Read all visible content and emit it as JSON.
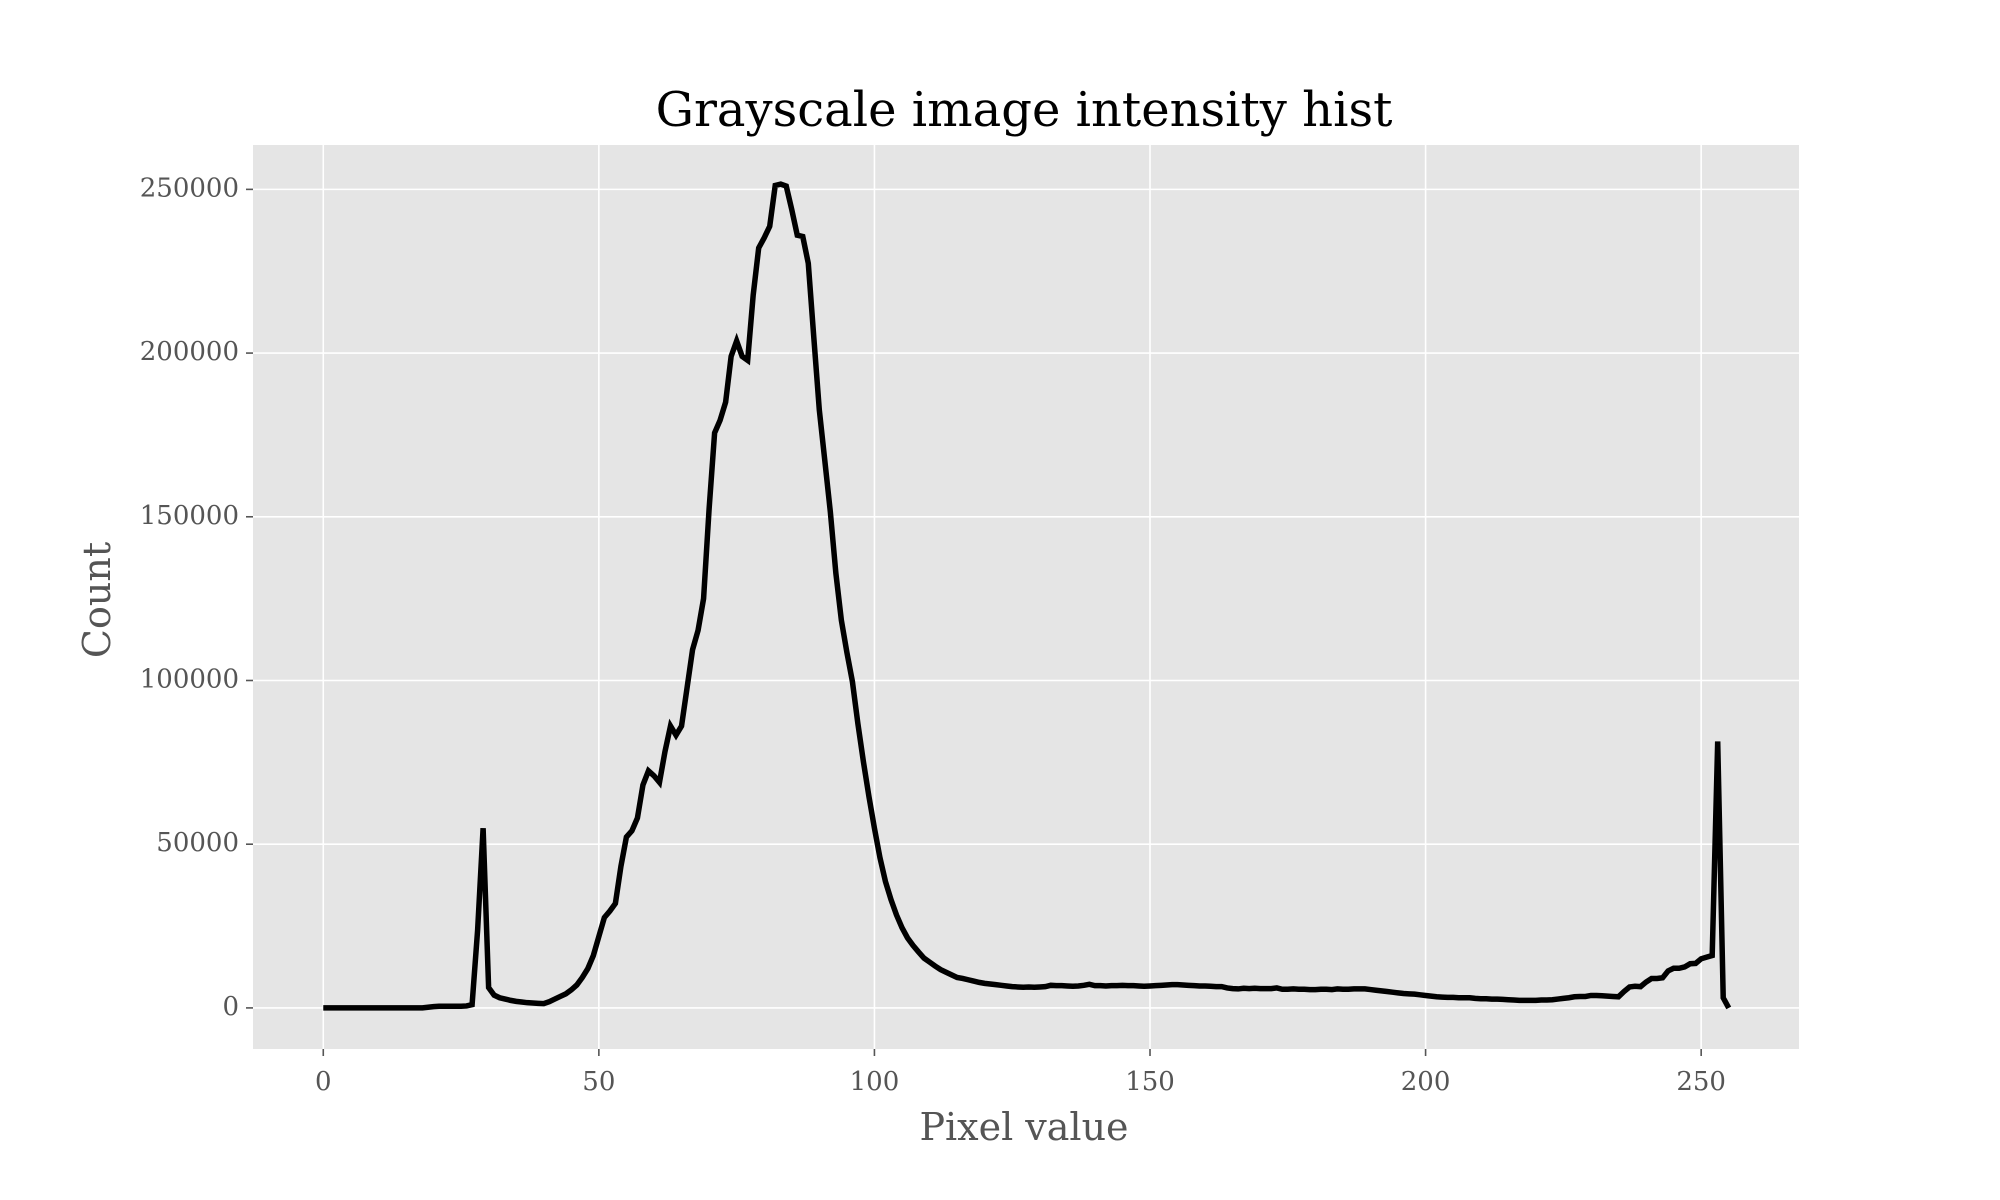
{
  "chart_data": {
    "type": "line",
    "title": "Grayscale image intensity hist",
    "x_label": "Pixel value",
    "y_label": "Count",
    "color": "#000000",
    "grid": true,
    "xlim": [
      -12.75,
      267.75
    ],
    "xticks": [
      0,
      50,
      100,
      150,
      200,
      250
    ],
    "ylim": [
      -12550,
      263550
    ],
    "yticks": [
      0,
      50000,
      100000,
      150000,
      200000,
      250000
    ],
    "x": [
      0,
      1,
      2,
      3,
      4,
      5,
      6,
      7,
      8,
      9,
      10,
      11,
      12,
      13,
      14,
      15,
      16,
      17,
      18,
      19,
      20,
      21,
      22,
      23,
      24,
      25,
      26,
      27,
      28,
      29,
      30,
      31,
      32,
      33,
      34,
      35,
      36,
      37,
      38,
      39,
      40,
      41,
      42,
      43,
      44,
      45,
      46,
      47,
      48,
      49,
      50,
      51,
      52,
      53,
      54,
      55,
      56,
      57,
      58,
      59,
      60,
      61,
      62,
      63,
      64,
      65,
      66,
      67,
      68,
      69,
      70,
      71,
      72,
      73,
      74,
      75,
      76,
      77,
      78,
      79,
      80,
      81,
      82,
      83,
      84,
      85,
      86,
      87,
      88,
      89,
      90,
      91,
      92,
      93,
      94,
      95,
      96,
      97,
      98,
      99,
      100,
      101,
      102,
      103,
      104,
      105,
      106,
      107,
      108,
      109,
      110,
      111,
      112,
      113,
      114,
      115,
      116,
      117,
      118,
      119,
      120,
      121,
      122,
      123,
      124,
      125,
      126,
      127,
      128,
      129,
      130,
      131,
      132,
      133,
      134,
      135,
      136,
      137,
      138,
      139,
      140,
      141,
      142,
      143,
      144,
      145,
      146,
      147,
      148,
      149,
      150,
      151,
      152,
      153,
      154,
      155,
      156,
      157,
      158,
      159,
      160,
      161,
      162,
      163,
      164,
      165,
      166,
      167,
      168,
      169,
      170,
      171,
      172,
      173,
      174,
      175,
      176,
      177,
      178,
      179,
      180,
      181,
      182,
      183,
      184,
      185,
      186,
      187,
      188,
      189,
      190,
      191,
      192,
      193,
      194,
      195,
      196,
      197,
      198,
      199,
      200,
      201,
      202,
      203,
      204,
      205,
      206,
      207,
      208,
      209,
      210,
      211,
      212,
      213,
      214,
      215,
      216,
      217,
      218,
      219,
      220,
      221,
      222,
      223,
      224,
      225,
      226,
      227,
      228,
      229,
      230,
      231,
      232,
      233,
      234,
      235,
      236,
      237,
      238,
      239,
      240,
      241,
      242,
      243,
      244,
      245,
      246,
      247,
      248,
      249,
      250,
      251,
      252,
      253,
      254,
      255
    ],
    "values": [
      0,
      0,
      0,
      0,
      0,
      0,
      0,
      0,
      0,
      0,
      0,
      0,
      0,
      0,
      0,
      0,
      0,
      0,
      0,
      200,
      400,
      500,
      500,
      500,
      500,
      500,
      600,
      1000,
      23700,
      54900,
      6200,
      3900,
      3100,
      2700,
      2300,
      2000,
      1800,
      1600,
      1500,
      1400,
      1300,
      1900,
      2700,
      3500,
      4300,
      5500,
      7000,
      9300,
      12000,
      16000,
      21800,
      27600,
      29600,
      31900,
      43200,
      52200,
      54100,
      58000,
      68100,
      72400,
      70900,
      68900,
      78300,
      86100,
      83300,
      86100,
      97700,
      109400,
      115300,
      125000,
      152300,
      175600,
      179500,
      185000,
      199000,
      203700,
      199000,
      197800,
      217700,
      232100,
      235200,
      238700,
      251200,
      251600,
      251000,
      243800,
      236000,
      235600,
      227400,
      204800,
      182600,
      167100,
      151500,
      132800,
      118400,
      108600,
      99700,
      86800,
      75200,
      64600,
      54900,
      45900,
      38600,
      33100,
      28400,
      24500,
      21400,
      19100,
      17100,
      15200,
      14000,
      12800,
      11700,
      10900,
      10100,
      9300,
      9000,
      8600,
      8200,
      7800,
      7500,
      7300,
      7100,
      6900,
      6700,
      6500,
      6400,
      6300,
      6400,
      6300,
      6400,
      6500,
      6900,
      6800,
      6800,
      6700,
      6600,
      6700,
      6900,
      7200,
      6800,
      6800,
      6700,
      6800,
      6800,
      6900,
      6800,
      6800,
      6700,
      6600,
      6700,
      6800,
      6900,
      7000,
      7100,
      7100,
      7000,
      6900,
      6800,
      6700,
      6700,
      6600,
      6500,
      6500,
      6100,
      5900,
      5800,
      6000,
      5900,
      6000,
      5900,
      5900,
      5900,
      6100,
      5700,
      5700,
      5800,
      5700,
      5700,
      5600,
      5600,
      5700,
      5700,
      5600,
      5800,
      5700,
      5700,
      5800,
      5800,
      5800,
      5600,
      5400,
      5200,
      5000,
      4800,
      4600,
      4400,
      4300,
      4200,
      4000,
      3800,
      3600,
      3400,
      3300,
      3200,
      3200,
      3100,
      3100,
      3100,
      2900,
      2800,
      2800,
      2700,
      2700,
      2600,
      2500,
      2400,
      2300,
      2300,
      2300,
      2300,
      2400,
      2400,
      2500,
      2700,
      2900,
      3100,
      3400,
      3500,
      3500,
      3800,
      3800,
      3700,
      3600,
      3500,
      3400,
      5000,
      6400,
      6600,
      6500,
      7900,
      9000,
      9000,
      9200,
      11300,
      12100,
      12100,
      12500,
      13500,
      13600,
      15000,
      15500,
      16000,
      81400,
      3100,
      0
    ]
  }
}
